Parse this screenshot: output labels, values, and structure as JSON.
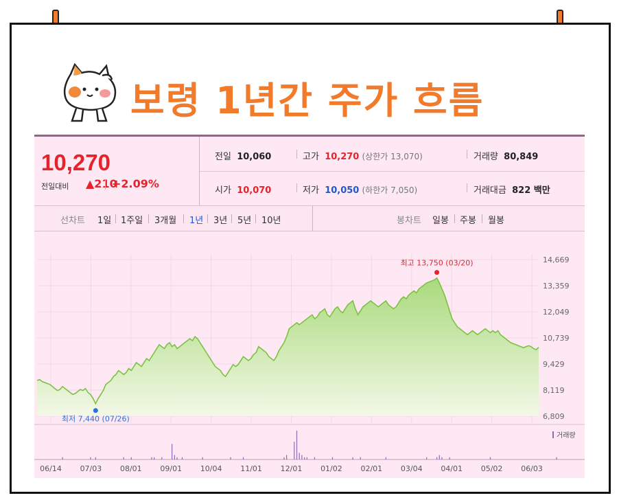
{
  "title": "보령 1년간 주가 흐름",
  "quote": {
    "price": "10,270",
    "change_label": "전일대비",
    "change_value": "▲210",
    "change_pct": "+2.09%"
  },
  "stats": {
    "prev_label": "전일",
    "prev_value": "10,060",
    "high_label": "고가",
    "high_value": "10,270",
    "upper_limit": "(상한가 13,070)",
    "volume_label": "거래량",
    "volume_value": "80,849",
    "open_label": "시가",
    "open_value": "10,070",
    "low_label": "저가",
    "low_value": "10,050",
    "lower_limit": "(하한가 7,050)",
    "amount_label": "거래대금",
    "amount_value": "822 백만"
  },
  "tabs": {
    "line_label": "선차트",
    "periods": [
      "1일",
      "1주일",
      "3개월",
      "1년",
      "3년",
      "5년",
      "10년"
    ],
    "active_period": "1년",
    "candle_label": "봉차트",
    "candles": [
      "일봉",
      "주봉",
      "월봉"
    ]
  },
  "chart_data": {
    "type": "area",
    "y_ticks": [
      "14,669",
      "13,359",
      "12,049",
      "10,739",
      "9,429",
      "8,119",
      "6,809"
    ],
    "ylim": [
      6809,
      14669
    ],
    "x_ticks": [
      "06/14",
      "07/03",
      "08/01",
      "09/01",
      "10/04",
      "11/01",
      "12/01",
      "01/02",
      "02/01",
      "03/04",
      "04/01",
      "05/02",
      "06/03"
    ],
    "annotations": {
      "high": "최고 13,750 (03/20)",
      "low": "최저 7,440 (07/26)"
    },
    "volume_label": "거래량",
    "series": [
      {
        "values": [
          8600,
          8650,
          8550,
          8500,
          8450,
          8400,
          8300,
          8200,
          8100,
          8150,
          8300,
          8200,
          8100,
          8000,
          7900,
          7950,
          8050,
          8150,
          8100,
          8200,
          8000,
          7900,
          7700,
          7440,
          7700,
          7900,
          8100,
          8400,
          8500,
          8600,
          8800,
          8900,
          9100,
          9000,
          8900,
          9000,
          9200,
          9100,
          9300,
          9500,
          9400,
          9300,
          9500,
          9700,
          9600,
          9800,
          10000,
          10200,
          10400,
          10300,
          10200,
          10400,
          10500,
          10300,
          10400,
          10200,
          10300,
          10400,
          10500,
          10600,
          10700,
          10600,
          10800,
          10700,
          10500,
          10300,
          10100,
          9900,
          9700,
          9500,
          9300,
          9200,
          9100,
          8900,
          8800,
          9000,
          9200,
          9400,
          9300,
          9400,
          9600,
          9800,
          9700,
          9600,
          9700,
          9900,
          10000,
          10300,
          10200,
          10100,
          10000,
          9800,
          9700,
          9600,
          9800,
          10100,
          10300,
          10500,
          10800,
          11200,
          11300,
          11400,
          11500,
          11400,
          11500,
          11600,
          11700,
          11800,
          11900,
          11700,
          11800,
          12000,
          12100,
          12200,
          11900,
          11800,
          12000,
          12200,
          12300,
          12100,
          12000,
          12200,
          12400,
          12500,
          12600,
          12200,
          11900,
          12100,
          12300,
          12400,
          12500,
          12600,
          12500,
          12400,
          12300,
          12400,
          12500,
          12600,
          12400,
          12300,
          12200,
          12300,
          12500,
          12700,
          12800,
          12700,
          12900,
          13000,
          13100,
          13000,
          13200,
          13300,
          13400,
          13500,
          13550,
          13600,
          13650,
          13750,
          13500,
          13200,
          12900,
          12500,
          12100,
          11700,
          11500,
          11300,
          11200,
          11100,
          11000,
          10900,
          11000,
          11100,
          11000,
          10900,
          11000,
          11100,
          11200,
          11100,
          11000,
          11100,
          11000,
          11100,
          10900,
          10800,
          10700,
          10600,
          10500,
          10450,
          10400,
          10350,
          10300,
          10250,
          10300,
          10350,
          10300,
          10200,
          10150,
          10270
        ]
      }
    ],
    "volume": [
      0,
      0,
      0,
      0,
      0,
      0,
      0,
      0,
      0,
      0,
      1,
      0,
      0,
      0,
      0,
      0,
      0,
      0,
      0,
      0,
      0,
      1,
      0,
      1,
      0,
      0,
      0,
      0,
      0,
      0,
      0,
      0,
      0,
      0,
      1,
      0,
      0,
      1,
      0,
      0,
      0,
      0,
      0,
      0,
      0,
      1,
      1,
      0,
      0,
      1,
      0,
      0,
      0,
      7,
      2,
      1,
      0,
      1,
      0,
      0,
      0,
      0,
      0,
      0,
      0,
      1,
      0,
      0,
      0,
      0,
      0,
      0,
      0,
      0,
      0,
      0,
      1,
      0,
      0,
      0,
      0,
      1,
      0,
      0,
      0,
      0,
      0,
      0,
      0,
      0,
      0,
      0,
      0,
      0,
      0,
      0,
      0,
      1,
      2,
      0,
      0,
      8,
      13,
      3,
      2,
      1,
      1,
      0,
      0,
      1,
      0,
      0,
      0,
      0,
      0,
      0,
      1,
      0,
      0,
      0,
      0,
      0,
      0,
      0,
      1,
      0,
      0,
      1,
      0,
      0,
      0,
      0,
      0,
      0,
      0,
      0,
      0,
      1,
      0,
      0,
      0,
      0,
      0,
      0,
      0,
      0,
      0,
      0,
      0,
      0,
      0,
      0,
      0,
      1,
      0,
      0,
      0,
      1,
      2,
      1,
      0,
      0,
      1,
      0,
      0,
      0,
      0,
      0,
      0,
      0,
      0,
      0,
      0,
      0,
      0,
      0,
      0,
      0,
      1,
      0,
      0,
      0,
      0,
      0,
      0,
      0,
      0,
      0,
      0,
      0,
      0,
      0,
      0,
      0,
      0,
      0,
      0,
      0,
      0,
      0,
      0,
      0,
      0,
      0,
      1
    ],
    "colors": {
      "line": "#7cc242",
      "fill_top": "#a9da7d",
      "fill_bottom": "#f3f8e6",
      "high": "#e6222a",
      "low": "#2f6fd6",
      "volume": "#8b6db1"
    }
  }
}
